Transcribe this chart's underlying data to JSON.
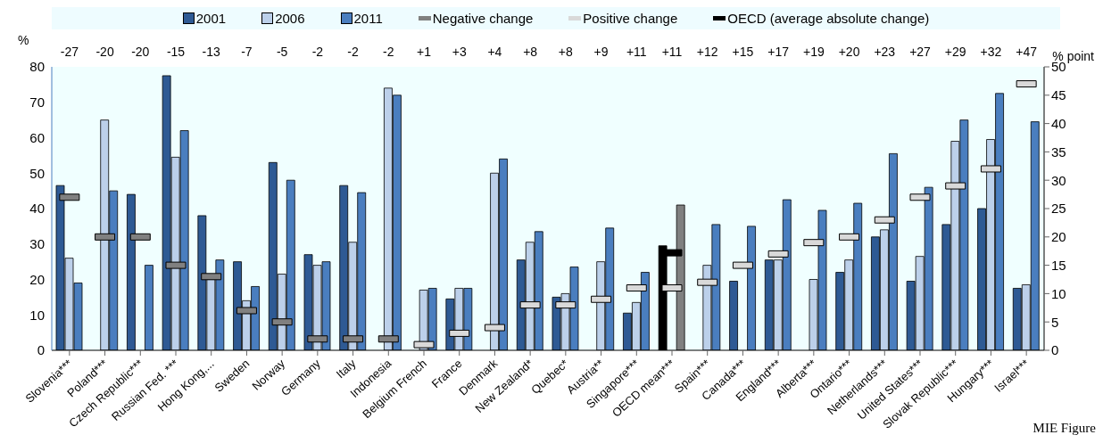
{
  "chart_data": {
    "type": "bar",
    "ylabel": "%",
    "y2label": "% point",
    "legend": "top",
    "annotations": [
      "-27",
      "-20",
      "-20",
      "-15",
      "-13",
      "-7",
      "-5",
      "-2",
      "-2",
      "-2",
      "+1",
      "+3",
      "+4",
      "+8",
      "+8",
      "+9",
      "+11",
      "+11",
      "+12",
      "+15",
      "+17",
      "+19",
      "+20",
      "+23",
      "+27",
      "+29",
      "+32",
      "+47",
      "MIE Figure"
    ],
    "categories": [
      "Slovenia***",
      "Poland***",
      "Czech Republic***",
      "Russian Fed. ***",
      "Hong Kong,...",
      "Sweden",
      "Norway",
      "Germany",
      "Italy",
      "Indonesia",
      "Belgium French",
      "France",
      "Denmark",
      "New Zealand*",
      "Quebec*",
      "Austria**",
      "Singapore***",
      "OECD mean***",
      "Spain***",
      "Canada***",
      "England***",
      "Alberta***",
      "Ontario***",
      "Netherlands***",
      "United States***",
      "Slovak Republic***",
      "Hungary***",
      "Israel***"
    ],
    "ylim": [
      0,
      80
    ],
    "yticks": [
      0,
      10,
      20,
      30,
      40,
      50,
      60,
      70,
      80
    ],
    "y2lim": [
      0,
      50
    ],
    "y2ticks": [
      0,
      5,
      10,
      15,
      20,
      25,
      30,
      35,
      40,
      45,
      50
    ],
    "series": [
      {
        "name": "2001",
        "color": "#2e5a94",
        "colors": [
          "#2e5a94",
          "#2e5a94",
          "#2e5a94",
          "#2e5a94",
          "#2e5a94",
          "#2e5a94",
          "#2e5a94",
          "#2e5a94",
          "#2e5a94",
          "#2e5a94",
          "#2e5a94",
          "#2e5a94",
          "#2e5a94",
          "#2e5a94",
          "#2e5a94",
          "#2e5a94",
          "#2e5a94",
          "#000000",
          "#2e5a94",
          "#2e5a94",
          "#2e5a94",
          "#2e5a94",
          "#2e5a94",
          "#2e5a94",
          "#2e5a94",
          "#2e5a94",
          "#2e5a94",
          "#2e5a94"
        ],
        "values": [
          46.5,
          null,
          44,
          77.5,
          38,
          25,
          53,
          27,
          46.5,
          null,
          null,
          14.5,
          null,
          25.5,
          15,
          null,
          10.5,
          29.5,
          null,
          19.5,
          25.5,
          null,
          22,
          32,
          19.5,
          35.5,
          40,
          17.5
        ]
      },
      {
        "name": "2006",
        "color": "#bcd0ea",
        "values": [
          26,
          65,
          null,
          54.5,
          20,
          14,
          21.5,
          24,
          30.5,
          74,
          17,
          17.5,
          50,
          30.5,
          16,
          25,
          13.5,
          null,
          24,
          null,
          25.5,
          20,
          25.5,
          34,
          26.5,
          59,
          59.5,
          18.5
        ]
      },
      {
        "name": "2011",
        "color": "#4a7ebf",
        "colors": [
          "#4a7ebf",
          "#4a7ebf",
          "#4a7ebf",
          "#4a7ebf",
          "#4a7ebf",
          "#4a7ebf",
          "#4a7ebf",
          "#4a7ebf",
          "#4a7ebf",
          "#4a7ebf",
          "#4a7ebf",
          "#4a7ebf",
          "#4a7ebf",
          "#4a7ebf",
          "#4a7ebf",
          "#4a7ebf",
          "#4a7ebf",
          "#808080",
          "#4a7ebf",
          "#4a7ebf",
          "#4a7ebf",
          "#4a7ebf",
          "#4a7ebf",
          "#4a7ebf",
          "#4a7ebf",
          "#4a7ebf",
          "#4a7ebf",
          "#4a7ebf"
        ],
        "values": [
          19,
          45,
          24,
          62,
          25.5,
          18,
          48,
          25,
          44.5,
          72,
          17.5,
          17.5,
          54,
          33.5,
          23.5,
          34.5,
          22,
          41,
          35.5,
          35,
          42.5,
          39.5,
          41.5,
          55.5,
          46,
          65,
          72.5,
          64.5
        ]
      },
      {
        "name": "Negative change",
        "type": "scatter",
        "axis": "y2",
        "color": "#808080",
        "values": [
          27,
          20,
          20,
          15,
          13,
          7,
          5,
          2,
          2,
          2,
          null,
          null,
          null,
          null,
          null,
          null,
          null,
          null,
          null,
          null,
          null,
          null,
          null,
          null,
          null,
          null,
          null,
          null
        ]
      },
      {
        "name": "Positive change",
        "type": "scatter",
        "axis": "y2",
        "color": "#d9d9d9",
        "values": [
          null,
          null,
          null,
          null,
          null,
          null,
          null,
          null,
          null,
          null,
          1,
          3,
          4,
          8,
          8,
          9,
          11,
          11,
          12,
          15,
          17,
          19,
          20,
          23,
          27,
          29,
          32,
          47
        ]
      },
      {
        "name": "OECD (average absolute change)",
        "type": "scatter",
        "axis": "y2",
        "color": "#000000",
        "values": [
          null,
          null,
          null,
          null,
          null,
          null,
          null,
          null,
          null,
          null,
          null,
          null,
          null,
          null,
          null,
          null,
          null,
          17.2,
          null,
          null,
          null,
          null,
          null,
          null,
          null,
          null,
          null,
          null
        ]
      }
    ]
  }
}
